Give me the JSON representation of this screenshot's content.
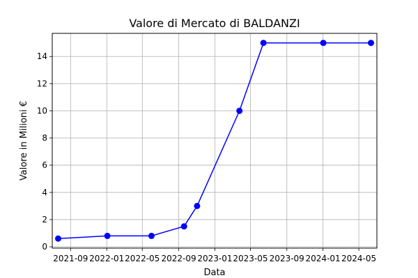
{
  "chart_data": {
    "type": "line",
    "title": "Valore di Mercato di BALDANZI",
    "xlabel": "Data",
    "ylabel": "Valore in Milioni €",
    "x_ticks": [
      "2021-09",
      "2022-01",
      "2022-05",
      "2022-09",
      "2023-01",
      "2023-05",
      "2023-09",
      "2024-01",
      "2024-05"
    ],
    "y_ticks": [
      "0",
      "2",
      "4",
      "6",
      "8",
      "10",
      "12",
      "14"
    ],
    "xlim": [
      "2021-07-01",
      "2024-07-01"
    ],
    "ylim": [
      -0.1,
      15.7
    ],
    "grid": true,
    "series": [
      {
        "color": "#0000ff",
        "marker": "circle",
        "x": [
          "2021-07-21",
          "2022-01-03",
          "2022-06-01",
          "2022-09-19",
          "2022-11-02",
          "2023-03-25",
          "2023-06-14",
          "2024-01-02",
          "2024-06-11"
        ],
        "values": [
          0.6,
          0.8,
          0.8,
          1.5,
          3.0,
          10.0,
          15.0,
          15.0,
          15.0
        ]
      }
    ]
  }
}
